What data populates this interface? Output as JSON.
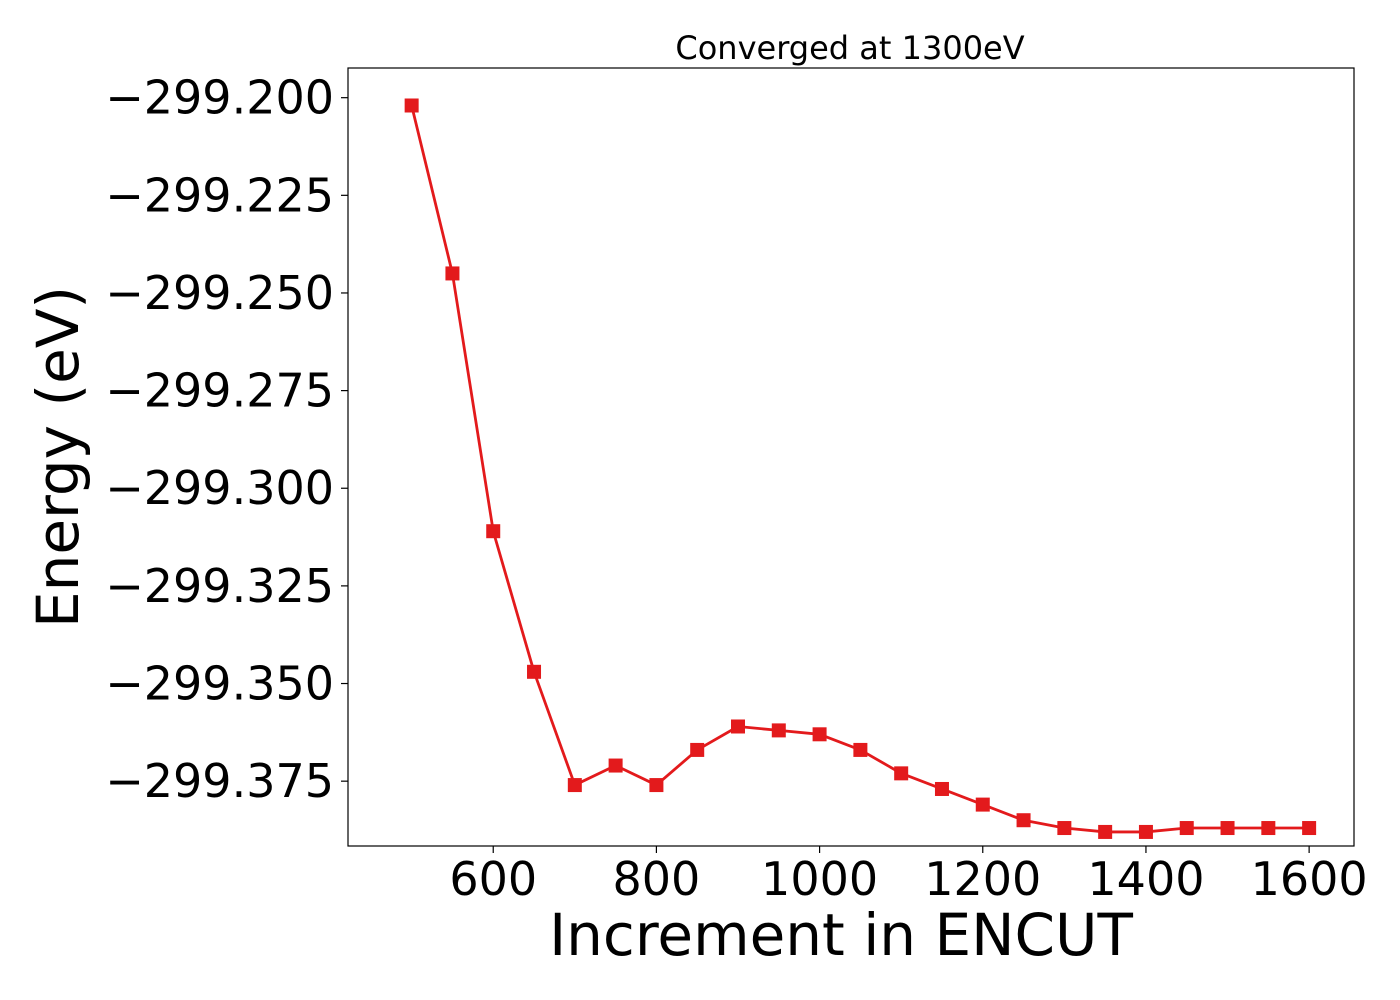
{
  "chart_data": {
    "type": "line",
    "title": "Converged at 1300eV",
    "xlabel": "Increment in ENCUT",
    "ylabel": "Energy (eV)",
    "x": [
      500,
      550,
      600,
      650,
      700,
      750,
      800,
      850,
      900,
      950,
      1000,
      1050,
      1100,
      1150,
      1200,
      1250,
      1300,
      1350,
      1400,
      1450,
      1500,
      1550,
      1600
    ],
    "series": [
      {
        "values": [
          -299.202,
          -299.245,
          -299.311,
          -299.347,
          -299.376,
          -299.371,
          -299.376,
          -299.367,
          -299.361,
          -299.362,
          -299.363,
          -299.367,
          -299.373,
          -299.377,
          -299.381,
          -299.385,
          -299.387,
          -299.388,
          -299.388,
          -299.387,
          -299.387,
          -299.387,
          -299.387
        ],
        "color": "#e31a1c",
        "marker": "square"
      }
    ],
    "xticks": [
      600,
      800,
      1000,
      1200,
      1400,
      1600
    ],
    "xtick_labels": [
      "600",
      "800",
      "1000",
      "1200",
      "1400",
      "1600"
    ],
    "yticks": [
      -299.2,
      -299.225,
      -299.25,
      -299.275,
      -299.3,
      -299.325,
      -299.35,
      -299.375
    ],
    "ytick_labels": [
      "−299.200",
      "−299.225",
      "−299.250",
      "−299.275",
      "−299.300",
      "−299.325",
      "−299.350",
      "−299.375"
    ],
    "xlim": [
      422,
      1655
    ],
    "ylim": [
      -299.3916,
      -299.1924
    ],
    "grid": false,
    "legend": "none"
  }
}
